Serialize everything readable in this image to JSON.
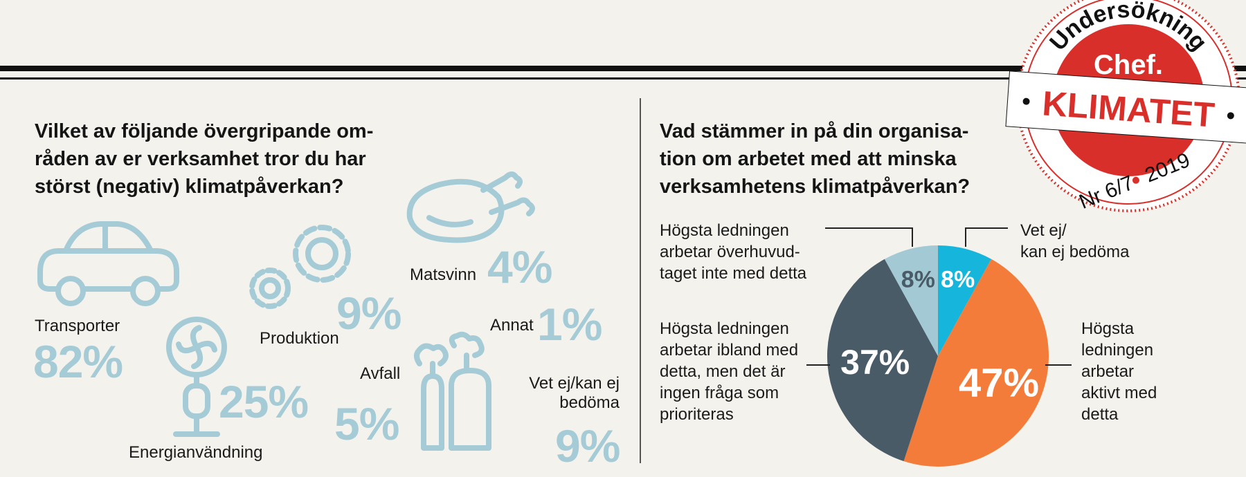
{
  "badge": {
    "top_text": "Undersökning",
    "brand": "Chef.",
    "banner": "KLIMATET",
    "issue": "Nr 6/7",
    "year": "2019",
    "colors": {
      "red": "#d92f2b",
      "white": "#ffffff",
      "ink": "#111111"
    }
  },
  "left": {
    "question_lines": [
      "Vilket av följande övergripande om-",
      "råden av er verksamhet tror du har",
      "störst (negativ) klimatpåverkan?"
    ]
  },
  "right": {
    "question_lines": [
      "Vad stämmer in på din organisa-",
      "tion om arbetet med att minska",
      "verksamhetens klimatpåverkan?"
    ]
  },
  "icon_color": "#a5cbd6",
  "chart_data": [
    {
      "type": "bar",
      "title": "Vilket av följande övergripande områden av er verksamhet tror du har störst (negativ) klimatpåverkan?",
      "unit": "%",
      "categories": [
        "Transporter",
        "Energianvändning",
        "Produktion",
        "Avfall",
        "Matsvinn",
        "Annat",
        "Vet ej/kan ej bedöma"
      ],
      "values": [
        82,
        25,
        9,
        5,
        4,
        1,
        9
      ],
      "value_labels": [
        "82%",
        "25%",
        "9%",
        "5%",
        "4%",
        "1%",
        "9%"
      ],
      "label_lines": [
        [
          "Transporter"
        ],
        [
          "Energianvändning"
        ],
        [
          "Produktion"
        ],
        [
          "Avfall"
        ],
        [
          "Matsvinn"
        ],
        [
          "Annat"
        ],
        [
          "Vet ej/kan ej",
          "bedöma"
        ]
      ],
      "icons": [
        "car-icon",
        "fan-icon",
        "gears-icon",
        "trash-bags-icon",
        "chicken-icon",
        "",
        ""
      ]
    },
    {
      "type": "pie",
      "title": "Vad stämmer in på din organisation om arbetet med att minska verksamhetens klimatpåverkan?",
      "unit": "%",
      "slices": [
        {
          "lines": [
            "Vet ej/",
            "kan ej bedöma"
          ],
          "value": 8,
          "value_label": "8%",
          "color": "#16b6dc"
        },
        {
          "lines": [
            "Högsta",
            "ledningen",
            "arbetar",
            "aktivt med",
            "detta"
          ],
          "value": 47,
          "value_label": "47%",
          "color": "#f47c3a"
        },
        {
          "lines": [
            "Högsta ledningen",
            "arbetar ibland med",
            "detta, men det är",
            "ingen fråga som",
            "prioriteras"
          ],
          "value": 37,
          "value_label": "37%",
          "color": "#4a5b68"
        },
        {
          "lines": [
            "Högsta ledningen",
            "arbetar överhuvud-",
            "taget inte med detta"
          ],
          "value": 8,
          "value_label": "8%",
          "color": "#a2c9d4"
        }
      ]
    }
  ]
}
